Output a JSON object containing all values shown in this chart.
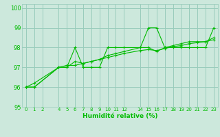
{
  "title": "",
  "xlabel": "Humidité relative (%)",
  "ylabel": "",
  "background_color": "#cce8dc",
  "grid_color": "#99ccbb",
  "line_color": "#00bb00",
  "xlim": [
    -0.5,
    23.5
  ],
  "ylim": [
    95,
    100.2
  ],
  "yticks": [
    95,
    96,
    97,
    98,
    99,
    100
  ],
  "xticks": [
    0,
    1,
    2,
    4,
    5,
    6,
    7,
    8,
    9,
    10,
    11,
    12,
    14,
    15,
    16,
    17,
    18,
    19,
    20,
    21,
    22,
    23
  ],
  "xtick_labels": [
    "0",
    "1",
    "2",
    "4",
    "5",
    "6",
    "7",
    "8",
    "9",
    "10",
    "11",
    "12",
    "14",
    "15",
    "16",
    "17",
    "18",
    "19",
    "20",
    "21",
    "22",
    "23"
  ],
  "series": [
    {
      "x": [
        0,
        1,
        4,
        5,
        6,
        7,
        8,
        9,
        10,
        11,
        12,
        14,
        15,
        16,
        17,
        18,
        19,
        20,
        21,
        22,
        23
      ],
      "y": [
        96,
        96,
        97,
        97,
        98,
        97,
        97,
        97,
        98,
        98,
        98,
        98,
        99,
        99,
        98,
        98,
        98,
        98,
        98,
        98,
        99
      ]
    },
    {
      "x": [
        0,
        1,
        4,
        5,
        6,
        7,
        8,
        9,
        10,
        11,
        12,
        14,
        15,
        16,
        17,
        18,
        19,
        20,
        21,
        22,
        23
      ],
      "y": [
        96,
        96,
        97,
        97,
        97.3,
        97.2,
        97.3,
        97.4,
        97.6,
        97.7,
        97.8,
        98.0,
        98.0,
        97.8,
        98.0,
        98.1,
        98.2,
        98.3,
        98.3,
        98.3,
        98.5
      ]
    },
    {
      "x": [
        0,
        1,
        4,
        5,
        6,
        7,
        8,
        9,
        10,
        11,
        12,
        14,
        15,
        16,
        17,
        18,
        19,
        20,
        21,
        22,
        23
      ],
      "y": [
        96,
        96.2,
        97.0,
        97.1,
        97.1,
        97.2,
        97.3,
        97.4,
        97.5,
        97.6,
        97.7,
        97.85,
        97.9,
        97.85,
        97.95,
        98.05,
        98.1,
        98.2,
        98.25,
        98.3,
        98.4
      ]
    }
  ]
}
